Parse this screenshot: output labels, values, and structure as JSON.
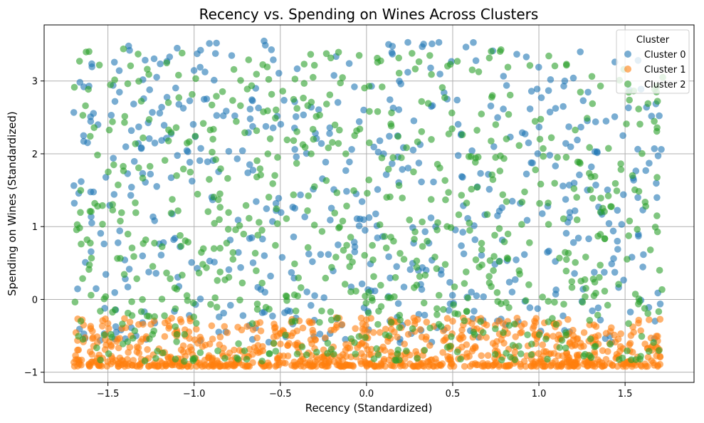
{
  "chart_data": {
    "type": "scatter",
    "title": "Recency vs. Spending on Wines Across Clusters",
    "xlabel": "Recency (Standardized)",
    "ylabel": "Spending on Wines (Standardized)",
    "xlim": [
      -1.87,
      1.9
    ],
    "ylim": [
      -1.14,
      3.77
    ],
    "xticks": [
      -1.5,
      -1.0,
      -0.5,
      0.0,
      0.5,
      1.0,
      1.5
    ],
    "xtick_labels": [
      "−1.5",
      "−1.0",
      "−0.5",
      "0.0",
      "0.5",
      "1.0",
      "1.5"
    ],
    "yticks": [
      -1,
      0,
      1,
      2,
      3
    ],
    "ytick_labels": [
      "−1",
      "0",
      "1",
      "2",
      "3"
    ],
    "grid": true,
    "legend": {
      "title": "Cluster",
      "placement": "top-right"
    },
    "point_alpha": 0.6,
    "series": [
      {
        "name": "Cluster 0",
        "color": "#1f77b4",
        "x_range": [
          -1.7,
          1.72
        ],
        "y_range": [
          -0.6,
          3.55
        ],
        "num_points": 560,
        "highlights": [
          [
            -1.38,
            3.48
          ],
          [
            0.24,
            3.53
          ],
          [
            0.38,
            3.51
          ],
          [
            0.42,
            3.53
          ],
          [
            1.24,
            3.4
          ],
          [
            -1.64,
            2.92
          ],
          [
            -1.61,
            2.93
          ],
          [
            -1.47,
            2.94
          ],
          [
            -0.1,
            3.24
          ],
          [
            -0.07,
            2.92
          ],
          [
            0.99,
            2.89
          ],
          [
            1.2,
            3.04
          ],
          [
            1.15,
            3.0
          ],
          [
            0.45,
            2.84
          ],
          [
            1.67,
            2.07
          ],
          [
            1.71,
            2.06
          ],
          [
            1.62,
            1.77
          ],
          [
            -0.06,
            1.45
          ],
          [
            0.76,
            1.15
          ],
          [
            1.48,
            1.03
          ]
        ]
      },
      {
        "name": "Cluster 1",
        "color": "#ff7f0e",
        "x_range": [
          -1.7,
          1.72
        ],
        "y_range": [
          -0.92,
          -0.25
        ],
        "num_points": 900,
        "highlights": [
          [
            -1.6,
            -0.4
          ],
          [
            -1.1,
            -0.45
          ],
          [
            -0.4,
            -0.6
          ],
          [
            0.0,
            -0.28
          ],
          [
            0.5,
            -0.3
          ],
          [
            1.55,
            -0.45
          ],
          [
            1.65,
            -0.53
          ],
          [
            -1.5,
            -0.33
          ],
          [
            0.9,
            -0.45
          ],
          [
            1.2,
            -0.5
          ]
        ]
      },
      {
        "name": "Cluster 2",
        "color": "#2ca02c",
        "x_range": [
          -1.7,
          1.72
        ],
        "y_range": [
          -0.85,
          3.45
        ],
        "num_points": 720,
        "highlights": [
          [
            -1.41,
            3.44
          ],
          [
            -0.31,
            3.05
          ],
          [
            0.78,
            3.43
          ],
          [
            0.82,
            3.19
          ],
          [
            1.16,
            3.23
          ],
          [
            -0.32,
            2.71
          ],
          [
            0.73,
            2.8
          ],
          [
            -1.63,
            2.66
          ],
          [
            -1.58,
            2.36
          ],
          [
            0.44,
            2.91
          ],
          [
            1.62,
            1.28
          ],
          [
            -1.56,
            1.28
          ],
          [
            0.98,
            1.78
          ],
          [
            -0.12,
            2.0
          ],
          [
            1.7,
            0.4
          ]
        ]
      }
    ]
  }
}
